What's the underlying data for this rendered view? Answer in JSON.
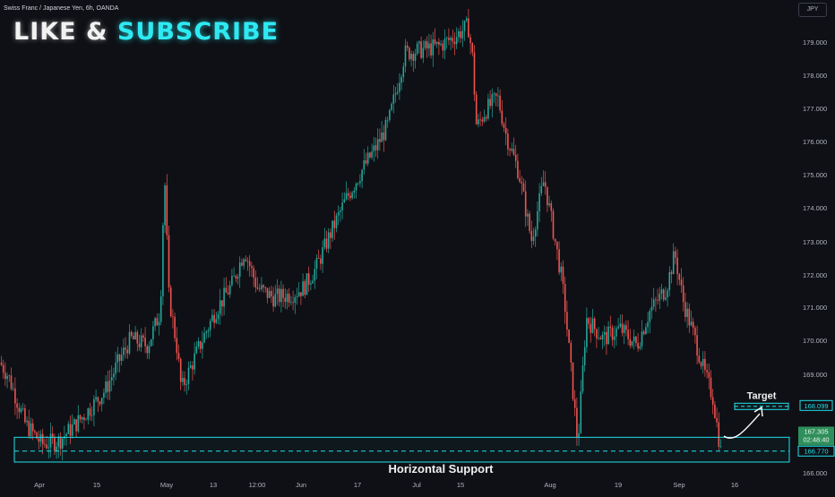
{
  "header": {
    "symbol_line": "Swiss Franc / Japanese Yen, 6h, OANDA"
  },
  "promo": {
    "like": "LIKE",
    "amp": "&",
    "subscribe": "SUBSCRIBE"
  },
  "currency_button": "JPY",
  "colors": {
    "background": "#0e1015",
    "bull": "#26a69a",
    "bear": "#ef5350",
    "cyan": "#22e0ec",
    "price_label_green": "#2f8f5b"
  },
  "chart_data": {
    "type": "candlestick",
    "symbol": "Swiss Franc / Japanese Yen, 6h, OANDA",
    "ylim": [
      166.0,
      179.8
    ],
    "y_ticks": [
      "179.000",
      "178.000",
      "177.000",
      "176.000",
      "175.000",
      "174.000",
      "173.000",
      "172.000",
      "171.000",
      "170.000",
      "169.000",
      "166.000"
    ],
    "x_ticks": [
      "Apr",
      "15",
      "May",
      "13",
      "12:00",
      "Jun",
      "17",
      "Jul",
      "15",
      "Aug",
      "19",
      "Sep",
      "16"
    ],
    "close_path": [
      [
        "2024-03-21",
        169.4
      ],
      [
        "2024-03-23",
        169.0
      ],
      [
        "2024-03-27",
        167.6
      ],
      [
        "2024-03-31",
        167.0
      ],
      [
        "2024-04-04",
        167.1
      ],
      [
        "2024-04-08",
        167.6
      ],
      [
        "2024-04-11",
        168.0
      ],
      [
        "2024-04-15",
        168.6
      ],
      [
        "2024-04-18",
        169.4
      ],
      [
        "2024-04-21",
        170.1
      ],
      [
        "2024-04-25",
        169.9
      ],
      [
        "2024-04-28",
        170.9
      ],
      [
        "2024-04-29",
        175.0
      ],
      [
        "2024-04-30",
        171.4
      ],
      [
        "2024-05-02",
        169.8
      ],
      [
        "2024-05-03",
        168.6
      ],
      [
        "2024-05-07",
        169.8
      ],
      [
        "2024-05-11",
        170.9
      ],
      [
        "2024-05-15",
        171.7
      ],
      [
        "2024-05-18",
        172.7
      ],
      [
        "2024-05-21",
        171.6
      ],
      [
        "2024-05-25",
        171.3
      ],
      [
        "2024-05-29",
        171.4
      ],
      [
        "2024-06-01",
        171.6
      ],
      [
        "2024-06-04",
        172.2
      ],
      [
        "2024-06-07",
        173.1
      ],
      [
        "2024-06-11",
        174.2
      ],
      [
        "2024-06-15",
        175.1
      ],
      [
        "2024-06-18",
        175.7
      ],
      [
        "2024-06-21",
        176.4
      ],
      [
        "2024-06-25",
        178.5
      ],
      [
        "2024-06-29",
        178.6
      ],
      [
        "2024-07-03",
        178.7
      ],
      [
        "2024-07-07",
        179.0
      ],
      [
        "2024-07-10",
        179.3
      ],
      [
        "2024-07-11",
        178.4
      ],
      [
        "2024-07-12",
        176.3
      ],
      [
        "2024-07-14",
        176.8
      ],
      [
        "2024-07-17",
        177.2
      ],
      [
        "2024-07-19",
        176.1
      ],
      [
        "2024-07-22",
        175.0
      ],
      [
        "2024-07-25",
        173.0
      ],
      [
        "2024-07-28",
        174.8
      ],
      [
        "2024-08-01",
        172.0
      ],
      [
        "2024-08-02",
        171.0
      ],
      [
        "2024-08-05",
        167.0
      ],
      [
        "2024-08-07",
        170.7
      ],
      [
        "2024-08-11",
        170.1
      ],
      [
        "2024-08-15",
        170.4
      ],
      [
        "2024-08-19",
        169.9
      ],
      [
        "2024-08-22",
        170.9
      ],
      [
        "2024-08-26",
        171.6
      ],
      [
        "2024-08-28",
        172.6
      ],
      [
        "2024-08-30",
        171.2
      ],
      [
        "2024-09-02",
        170.0
      ],
      [
        "2024-09-04",
        169.1
      ],
      [
        "2024-09-06",
        168.4
      ],
      [
        "2024-09-08",
        166.7
      ]
    ],
    "support_zone": {
      "label": "Horizontal Support",
      "low": 166.58,
      "high": 167.15,
      "level": 166.77
    },
    "target": {
      "label": "Target",
      "level": 168.099
    },
    "price_labels": {
      "target": "168.099",
      "support": "166.770",
      "current": "167.305",
      "countdown": "02:48:40"
    }
  }
}
